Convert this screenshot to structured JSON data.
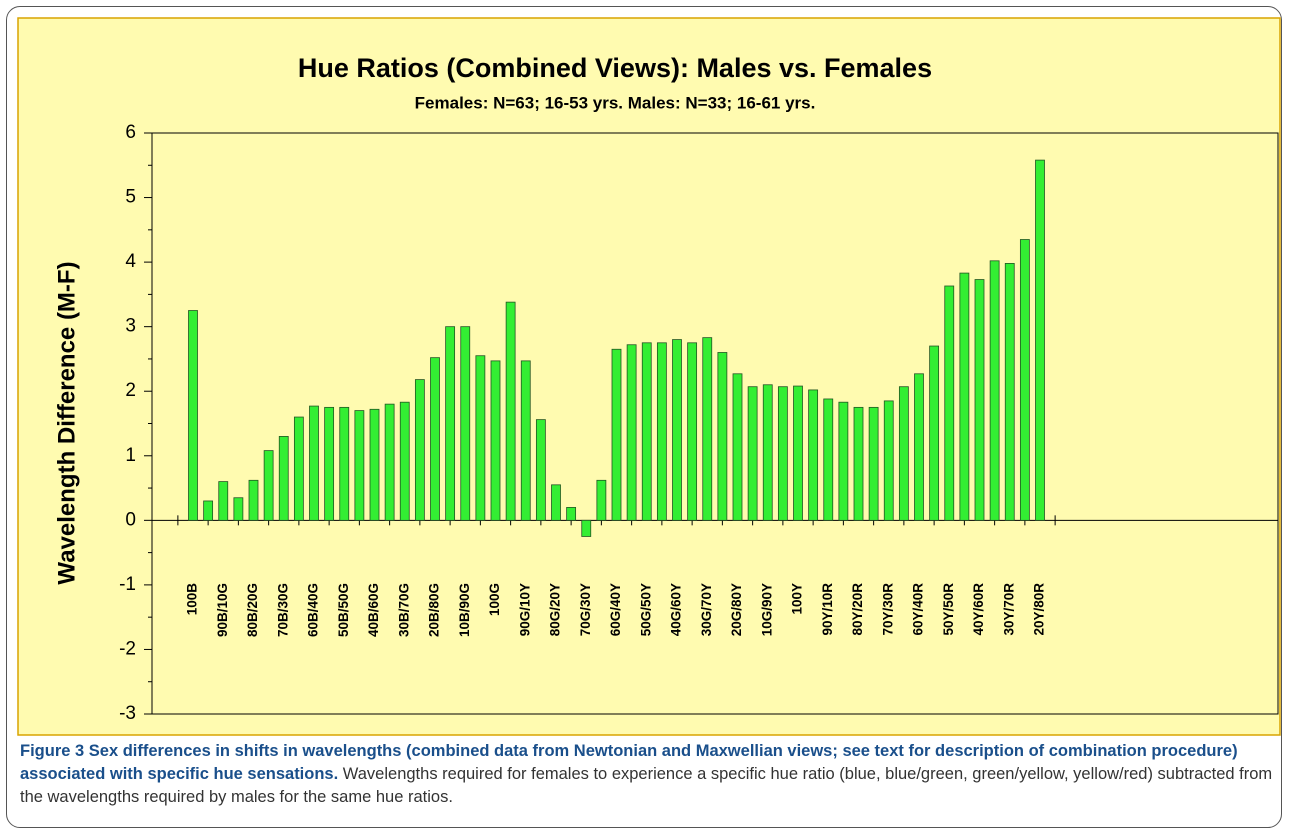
{
  "chart_data": {
    "type": "bar",
    "title": "Hue Ratios (Combined Views): Males vs. Females",
    "subtitle": "Females: N=63; 16-53 yrs. Males: N=33; 16-61 yrs.",
    "y_label": "Wavelength Difference (M-F)",
    "categories": [
      "100B",
      null,
      "90B/10G",
      null,
      "80B/20G",
      null,
      "70B/30G",
      null,
      "60B/40G",
      null,
      "50B/50G",
      null,
      "40B/60G",
      null,
      "30B/70G",
      null,
      "20B/80G",
      null,
      "10B/90G",
      null,
      "100G",
      null,
      "90G/10Y",
      null,
      "80G/20Y",
      null,
      "70G/30Y",
      null,
      "60G/40Y",
      null,
      "50G/50Y",
      null,
      "40G/60Y",
      null,
      "30G/70Y",
      null,
      "20G/80Y",
      null,
      "10G/90Y",
      null,
      "100Y",
      null,
      "90Y/10R",
      null,
      "80Y/20R",
      null,
      "70Y/30R",
      null,
      "60Y/40R",
      null,
      "50Y/50R",
      null,
      "40Y/60R",
      null,
      "30Y/70R",
      null,
      "20Y/80R"
    ],
    "values": [
      3.25,
      0.3,
      0.6,
      0.35,
      0.62,
      1.08,
      1.3,
      1.6,
      1.77,
      1.75,
      1.75,
      1.7,
      1.72,
      1.8,
      1.83,
      2.18,
      2.52,
      3.0,
      3.0,
      2.55,
      2.47,
      3.38,
      2.47,
      1.56,
      0.55,
      0.2,
      -0.25,
      0.62,
      2.65,
      2.72,
      2.75,
      2.75,
      2.8,
      2.75,
      2.83,
      2.6,
      2.27,
      2.07,
      2.1,
      2.07,
      2.08,
      2.02,
      1.88,
      1.83,
      1.75,
      1.75,
      1.85,
      2.07,
      2.27,
      2.7,
      3.63,
      3.83,
      3.73,
      4.02,
      3.98,
      4.35,
      5.58
    ],
    "color": "#33ee33",
    "ylim": [
      -3,
      6
    ],
    "yticks": [
      -3,
      -2,
      -1,
      0,
      1,
      2,
      3,
      4,
      5,
      6
    ]
  },
  "caption": {
    "bold": "Figure 3 Sex differences in shifts in wavelengths (combined data from Newtonian and Maxwellian views; see text for description of combination procedure) associated with specific hue sensations.",
    "text": "Wavelengths required for females to experience a specific hue ratio (blue, blue/green, green/yellow, yellow/red) subtracted from the wavelengths required by males for the same hue ratios."
  }
}
